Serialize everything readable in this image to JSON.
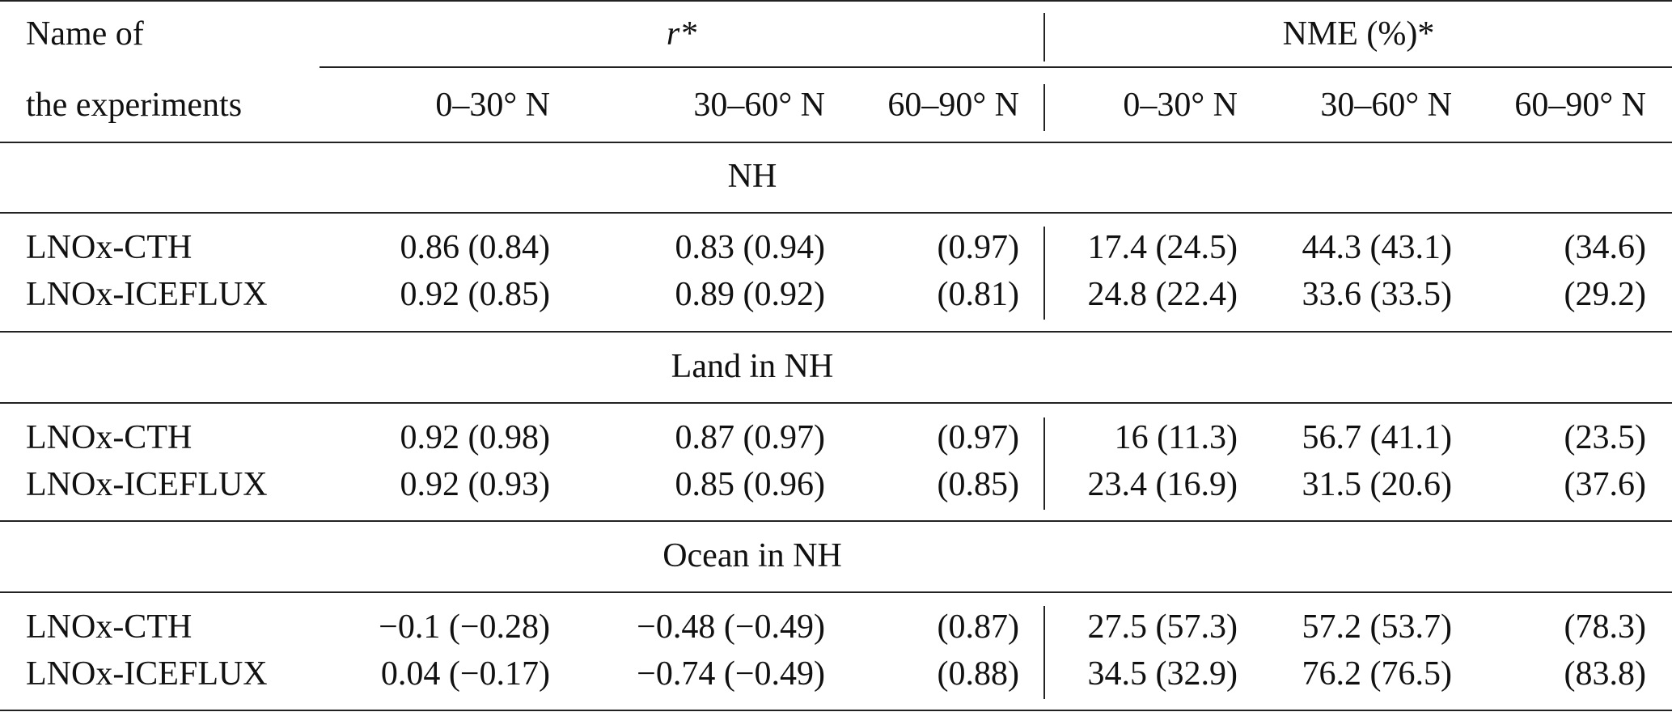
{
  "header": {
    "name_line1": "Name of",
    "name_line2": "the experiments",
    "group_r": "r*",
    "group_nme": "NME (%)*",
    "bands": [
      "0–30° N",
      "30–60° N",
      "60–90° N",
      "0–30° N",
      "30–60° N",
      "60–90° N"
    ]
  },
  "sections": [
    {
      "title": "NH",
      "rows": [
        {
          "name": "LNOx-CTH",
          "values": [
            "0.86 (0.84)",
            "0.83 (0.94)",
            "(0.97)",
            "17.4 (24.5)",
            "44.3 (43.1)",
            "(34.6)"
          ]
        },
        {
          "name": "LNOx-ICEFLUX",
          "values": [
            "0.92 (0.85)",
            "0.89 (0.92)",
            "(0.81)",
            "24.8 (22.4)",
            "33.6 (33.5)",
            "(29.2)"
          ]
        }
      ]
    },
    {
      "title": "Land in NH",
      "rows": [
        {
          "name": "LNOx-CTH",
          "values": [
            "0.92 (0.98)",
            "0.87 (0.97)",
            "(0.97)",
            "16 (11.3)",
            "56.7 (41.1)",
            "(23.5)"
          ]
        },
        {
          "name": "LNOx-ICEFLUX",
          "values": [
            "0.92 (0.93)",
            "0.85 (0.96)",
            "(0.85)",
            "23.4 (16.9)",
            "31.5 (20.6)",
            "(37.6)"
          ]
        }
      ]
    },
    {
      "title": "Ocean in NH",
      "rows": [
        {
          "name": "LNOx-CTH",
          "values": [
            "−0.1 (−0.28)",
            "−0.48 (−0.49)",
            "(0.87)",
            "27.5 (57.3)",
            "57.2 (53.7)",
            "(78.3)"
          ]
        },
        {
          "name": "LNOx-ICEFLUX",
          "values": [
            "0.04 (−0.17)",
            "−0.74 (−0.49)",
            "(0.88)",
            "34.5 (32.9)",
            "76.2 (76.5)",
            "(83.8)"
          ]
        }
      ]
    }
  ]
}
